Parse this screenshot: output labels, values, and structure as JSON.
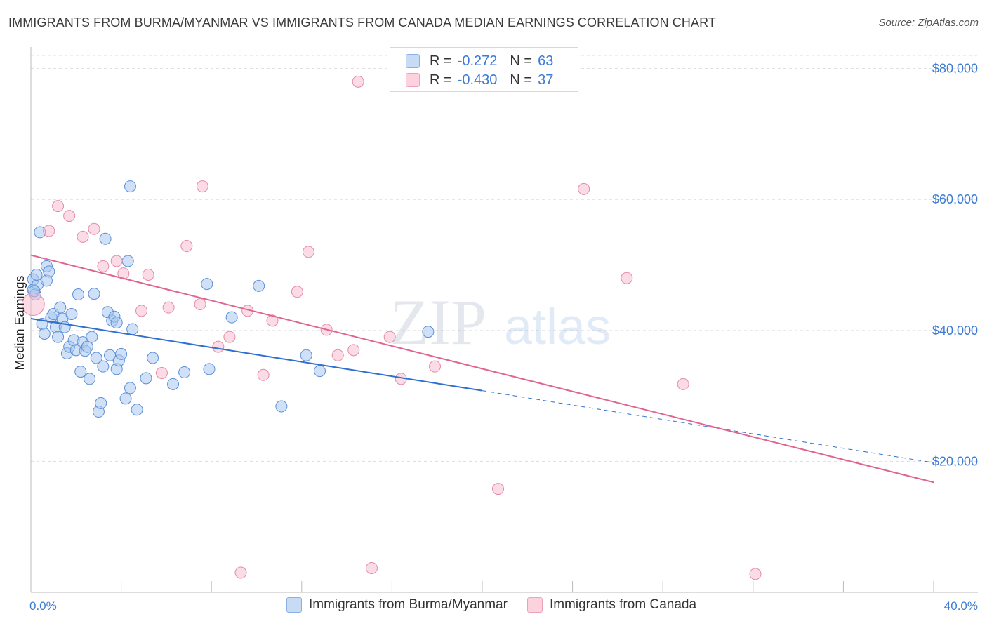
{
  "header": {
    "title": "IMMIGRANTS FROM BURMA/MYANMAR VS IMMIGRANTS FROM CANADA MEDIAN EARNINGS CORRELATION CHART",
    "source": "Source: ZipAtlas.com"
  },
  "watermark": "ZIPatlas",
  "legend": {
    "r_label": "R =",
    "n_label": "N =",
    "rows": [
      {
        "r": "-0.272",
        "n": "63",
        "color": "#a9c8f0"
      },
      {
        "r": "-0.430",
        "n": "37",
        "color": "#f7b8cb"
      }
    ]
  },
  "colors": {
    "blue_fill": "#a9c8f0",
    "blue_stroke": "#5b8fd8",
    "blue_line": "#2f6fd0",
    "pink_fill": "#f7b8cb",
    "pink_stroke": "#e58aa6",
    "pink_line": "#e06491",
    "axis_text": "#3d7bd6",
    "grid": "#dddddd"
  },
  "chart_data": {
    "type": "scatter",
    "title": "IMMIGRANTS FROM BURMA/MYANMAR VS IMMIGRANTS FROM CANADA MEDIAN EARNINGS CORRELATION CHART",
    "xlabel": "",
    "ylabel": "Median Earnings",
    "xlim": [
      0,
      40
    ],
    "ylim": [
      0,
      82000
    ],
    "x_tick_labels": [
      "0.0%",
      "40.0%"
    ],
    "y_ticks": [
      20000,
      40000,
      60000,
      80000
    ],
    "y_tick_labels": [
      "$20,000",
      "$40,000",
      "$60,000",
      "$80,000"
    ],
    "series": [
      {
        "name": "Immigrants from Burma/Myanmar",
        "color": "#a9c8f0",
        "points": [
          [
            0.1,
            47800
          ],
          [
            0.1,
            46200
          ],
          [
            0.2,
            45500
          ],
          [
            0.3,
            47000
          ],
          [
            0.4,
            55000
          ],
          [
            0.5,
            41000
          ],
          [
            0.6,
            39500
          ],
          [
            0.7,
            49800
          ],
          [
            0.7,
            47600
          ],
          [
            0.8,
            49000
          ],
          [
            0.9,
            42000
          ],
          [
            1.0,
            42500
          ],
          [
            1.1,
            40500
          ],
          [
            1.2,
            39000
          ],
          [
            1.3,
            43500
          ],
          [
            1.4,
            41800
          ],
          [
            1.5,
            40500
          ],
          [
            1.6,
            36500
          ],
          [
            1.7,
            37500
          ],
          [
            1.8,
            42500
          ],
          [
            1.9,
            38500
          ],
          [
            2.0,
            37000
          ],
          [
            2.1,
            45500
          ],
          [
            2.2,
            33700
          ],
          [
            2.3,
            38200
          ],
          [
            2.4,
            36900
          ],
          [
            2.5,
            37500
          ],
          [
            2.6,
            32600
          ],
          [
            2.7,
            39000
          ],
          [
            2.8,
            45600
          ],
          [
            2.9,
            35800
          ],
          [
            3.0,
            27600
          ],
          [
            3.1,
            28900
          ],
          [
            3.2,
            34500
          ],
          [
            3.3,
            54000
          ],
          [
            3.4,
            42800
          ],
          [
            3.5,
            36200
          ],
          [
            3.6,
            41500
          ],
          [
            3.7,
            42100
          ],
          [
            3.8,
            41200
          ],
          [
            3.8,
            34100
          ],
          [
            3.9,
            35400
          ],
          [
            4.0,
            36400
          ],
          [
            4.2,
            29600
          ],
          [
            4.3,
            50600
          ],
          [
            4.4,
            31200
          ],
          [
            4.4,
            62000
          ],
          [
            4.5,
            40200
          ],
          [
            4.7,
            27900
          ],
          [
            5.1,
            32700
          ],
          [
            5.4,
            35800
          ],
          [
            6.3,
            31800
          ],
          [
            6.8,
            33600
          ],
          [
            7.8,
            47100
          ],
          [
            7.9,
            34100
          ],
          [
            8.9,
            42000
          ],
          [
            10.1,
            46800
          ],
          [
            11.1,
            28400
          ],
          [
            12.2,
            36200
          ],
          [
            12.8,
            33800
          ],
          [
            17.6,
            39800
          ],
          [
            0.15,
            46000
          ],
          [
            0.25,
            48500
          ]
        ]
      },
      {
        "name": "Immigrants from Canada",
        "color": "#f7b8cb",
        "points": [
          [
            0.1,
            44000
          ],
          [
            0.8,
            55200
          ],
          [
            1.2,
            59000
          ],
          [
            1.7,
            57500
          ],
          [
            2.3,
            54300
          ],
          [
            2.8,
            55500
          ],
          [
            3.2,
            49800
          ],
          [
            3.8,
            50600
          ],
          [
            4.1,
            48700
          ],
          [
            4.9,
            43000
          ],
          [
            5.2,
            48500
          ],
          [
            5.8,
            33500
          ],
          [
            6.1,
            43500
          ],
          [
            6.9,
            52900
          ],
          [
            7.5,
            44000
          ],
          [
            7.6,
            62000
          ],
          [
            8.3,
            37500
          ],
          [
            8.8,
            39000
          ],
          [
            9.3,
            3000
          ],
          [
            9.6,
            43000
          ],
          [
            10.3,
            33200
          ],
          [
            10.7,
            41500
          ],
          [
            11.8,
            45900
          ],
          [
            12.3,
            52000
          ],
          [
            13.1,
            40100
          ],
          [
            13.6,
            36200
          ],
          [
            14.3,
            37000
          ],
          [
            14.5,
            78000
          ],
          [
            15.1,
            3700
          ],
          [
            15.9,
            39000
          ],
          [
            16.4,
            32600
          ],
          [
            17.9,
            34500
          ],
          [
            20.7,
            15800
          ],
          [
            24.5,
            61600
          ],
          [
            26.4,
            48000
          ],
          [
            28.9,
            31800
          ],
          [
            32.1,
            2800
          ]
        ]
      }
    ],
    "trend_lines": [
      {
        "series": "Immigrants from Burma/Myanmar",
        "solid": [
          [
            0,
            41800
          ],
          [
            20,
            30800
          ]
        ],
        "dashed": [
          [
            20,
            30800
          ],
          [
            40,
            19800
          ]
        ]
      },
      {
        "series": "Immigrants from Canada",
        "solid": [
          [
            0,
            51500
          ],
          [
            40,
            16800
          ]
        ]
      }
    ]
  }
}
